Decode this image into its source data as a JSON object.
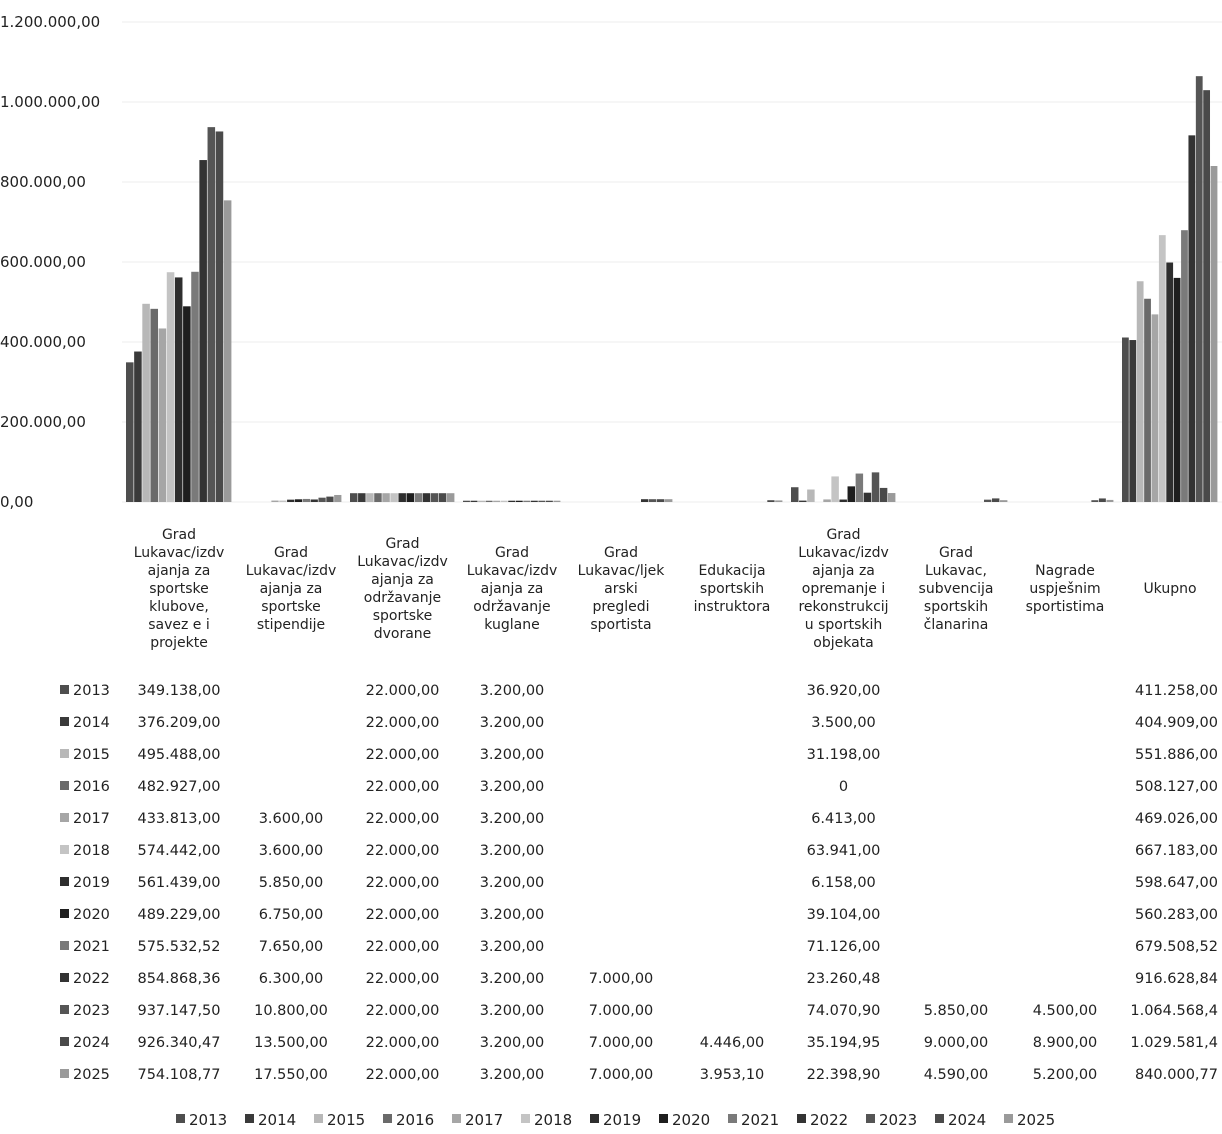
{
  "chart_data": {
    "type": "bar",
    "ylim": [
      0,
      1200000
    ],
    "y_ticks": [
      "0,00",
      "200.000,00",
      "400.000,00",
      "600.000,00",
      "800.000,00",
      "1.000.000,00",
      "1.200.000,00"
    ],
    "legend_position": "bottom",
    "data_table": true,
    "categories": [
      "Grad Lukavac/izdvajanja za sportske klubove, saveze i projekte",
      "Grad Lukavac/izdvajanja za sportske stipendije",
      "Grad Lukavac/izdvajanja za održavanje sportske dvorane",
      "Grad Lukavac/izdvajanja za održavanje kuglane",
      "Grad Lukavac/ljekarski pregledi sportista",
      "Edukacija sportskih instruktora",
      "Grad Lukavac/izdvajanja za opremanje i rekonstrukciju sportskih objekata",
      "Grad Lukavac, subvencija sportskih članarina",
      "Nagrade uspješnim sportistima",
      "Ukupno"
    ],
    "category_label_lines": [
      [
        "Grad",
        "Lukavac/izdv",
        "ajanja za",
        "sportske",
        "klubove,",
        "savez e i",
        "projekte"
      ],
      [
        "Grad",
        "Lukavac/izdv",
        "ajanja za",
        "sportske",
        "stipendije"
      ],
      [
        "Grad",
        "Lukavac/izdv",
        "ajanja za",
        "održavanje",
        "sportske",
        "dvorane"
      ],
      [
        "Grad",
        "Lukavac/izdv",
        "ajanja za",
        "održavanje",
        "kuglane"
      ],
      [
        "Grad",
        "Lukavac/ljek",
        "arski",
        "pregledi",
        "sportista"
      ],
      [
        "Edukacija",
        "sportskih",
        "instruktora"
      ],
      [
        "Grad",
        "Lukavac/izdv",
        "ajanja za",
        "opremanje i",
        "rekonstrukcij",
        "u sportskih",
        "objekata"
      ],
      [
        "Grad",
        "Lukavac,",
        "subvencija",
        "sportskih",
        "članarina"
      ],
      [
        "Nagrade",
        "uspješnim",
        "sportistima"
      ],
      [
        "Ukupno"
      ]
    ],
    "series": [
      {
        "name": "2013",
        "color": "#4e4e4e",
        "values": [
          349138.0,
          null,
          22000.0,
          3200.0,
          null,
          null,
          36920.0,
          null,
          null,
          411258.0
        ],
        "labels": [
          "349.138,00",
          "",
          "22.000,00",
          "3.200,00",
          "",
          "",
          "36.920,00",
          "",
          "",
          "411.258,00"
        ]
      },
      {
        "name": "2014",
        "color": "#3a3a3a",
        "values": [
          376209.0,
          null,
          22000.0,
          3200.0,
          null,
          null,
          3500.0,
          null,
          null,
          404909.0
        ],
        "labels": [
          "376.209,00",
          "",
          "22.000,00",
          "3.200,00",
          "",
          "",
          "3.500,00",
          "",
          "",
          "404.909,00"
        ]
      },
      {
        "name": "2015",
        "color": "#b8b8b8",
        "values": [
          495488.0,
          null,
          22000.0,
          3200.0,
          null,
          null,
          31198.0,
          null,
          null,
          551886.0
        ],
        "labels": [
          "495.488,00",
          "",
          "22.000,00",
          "3.200,00",
          "",
          "",
          "31.198,00",
          "",
          "",
          "551.886,00"
        ]
      },
      {
        "name": "2016",
        "color": "#6a6a6a",
        "values": [
          482927.0,
          null,
          22000.0,
          3200.0,
          null,
          null,
          0,
          null,
          null,
          508127.0
        ],
        "labels": [
          "482.927,00",
          "",
          "22.000,00",
          "3.200,00",
          "",
          "",
          "0",
          "",
          "",
          "508.127,00"
        ]
      },
      {
        "name": "2017",
        "color": "#a6a6a6",
        "values": [
          433813.0,
          3600.0,
          22000.0,
          3200.0,
          null,
          null,
          6413.0,
          null,
          null,
          469026.0
        ],
        "labels": [
          "433.813,00",
          "3.600,00",
          "22.000,00",
          "3.200,00",
          "",
          "",
          "6.413,00",
          "",
          "",
          "469.026,00"
        ]
      },
      {
        "name": "2018",
        "color": "#c4c4c4",
        "values": [
          574442.0,
          3600.0,
          22000.0,
          3200.0,
          null,
          null,
          63941.0,
          null,
          null,
          667183.0
        ],
        "labels": [
          "574.442,00",
          "3.600,00",
          "22.000,00",
          "3.200,00",
          "",
          "",
          "63.941,00",
          "",
          "",
          "667.183,00"
        ]
      },
      {
        "name": "2019",
        "color": "#2e2e2e",
        "values": [
          561439.0,
          5850.0,
          22000.0,
          3200.0,
          null,
          null,
          6158.0,
          null,
          null,
          598647.0
        ],
        "labels": [
          "561.439,00",
          "5.850,00",
          "22.000,00",
          "3.200,00",
          "",
          "",
          "6.158,00",
          "",
          "",
          "598.647,00"
        ]
      },
      {
        "name": "2020",
        "color": "#1e1e1e",
        "values": [
          489229.0,
          6750.0,
          22000.0,
          3200.0,
          null,
          null,
          39104.0,
          null,
          null,
          560283.0
        ],
        "labels": [
          "489.229,00",
          "6.750,00",
          "22.000,00",
          "3.200,00",
          "",
          "",
          "39.104,00",
          "",
          "",
          "560.283,00"
        ]
      },
      {
        "name": "2021",
        "color": "#7a7a7a",
        "values": [
          575532.52,
          7650.0,
          22000.0,
          3200.0,
          null,
          null,
          71126.0,
          null,
          null,
          679508.52
        ],
        "labels": [
          "575.532,52",
          "7.650,00",
          "22.000,00",
          "3.200,00",
          "",
          "",
          "71.126,00",
          "",
          "",
          "679.508,52"
        ]
      },
      {
        "name": "2022",
        "color": "#333333",
        "values": [
          854868.36,
          6300.0,
          22000.0,
          3200.0,
          7000.0,
          null,
          23260.48,
          null,
          null,
          916628.84
        ],
        "labels": [
          "854.868,36",
          "6.300,00",
          "22.000,00",
          "3.200,00",
          "7.000,00",
          "",
          "23.260,48",
          "",
          "",
          "916.628,84"
        ]
      },
      {
        "name": "2023",
        "color": "#555555",
        "values": [
          937147.5,
          10800.0,
          22000.0,
          3200.0,
          7000.0,
          null,
          74070.9,
          5850.0,
          4500.0,
          1064568.4
        ],
        "labels": [
          "937.147,50",
          "10.800,00",
          "22.000,00",
          "3.200,00",
          "7.000,00",
          "",
          "74.070,90",
          "5.850,00",
          "4.500,00",
          "1.064.568,4"
        ]
      },
      {
        "name": "2024",
        "color": "#4a4a4a",
        "values": [
          926340.47,
          13500.0,
          22000.0,
          3200.0,
          7000.0,
          4446.0,
          35194.95,
          9000.0,
          8900.0,
          1029581.4
        ],
        "labels": [
          "926.340,47",
          "13.500,00",
          "22.000,00",
          "3.200,00",
          "7.000,00",
          "4.446,00",
          "35.194,95",
          "9.000,00",
          "8.900,00",
          "1.029.581,4"
        ]
      },
      {
        "name": "2025",
        "color": "#9a9a9a",
        "values": [
          754108.77,
          17550.0,
          22000.0,
          3200.0,
          7000.0,
          3953.1,
          22398.9,
          4590.0,
          5200.0,
          840000.77
        ],
        "labels": [
          "754.108,77",
          "17.550,00",
          "22.000,00",
          "3.200,00",
          "7.000,00",
          "3.953,10",
          "22.398,90",
          "4.590,00",
          "5.200,00",
          "840.000,77"
        ]
      }
    ]
  }
}
